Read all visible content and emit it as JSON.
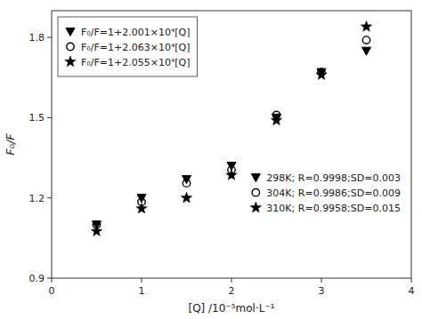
{
  "chart_data": {
    "type": "scatter",
    "x_label": "[Q] /10⁻⁵mol·L⁻¹",
    "y_label": "F₀/F",
    "x": [
      0.5,
      1.0,
      1.5,
      2.0,
      2.5,
      3.0,
      3.5
    ],
    "series": [
      {
        "name": "298K; R=0.9998;SD=0.003",
        "color": "#000000",
        "marker": "triangle-down",
        "values": [
          1.1,
          1.2,
          1.27,
          1.32,
          1.5,
          1.67,
          1.75
        ]
      },
      {
        "name": "304K; R=0.9986;SD=0.009",
        "color": "#000000",
        "marker": "circle-open",
        "values": [
          1.1,
          1.185,
          1.255,
          1.305,
          1.51,
          1.67,
          1.79
        ]
      },
      {
        "name": "310K; R=0.9958;SD=0.015",
        "color": "#000000",
        "marker": "star",
        "values": [
          1.075,
          1.16,
          1.2,
          1.285,
          1.49,
          1.66,
          1.84
        ]
      }
    ],
    "annotations": [
      "F₀/F=1+2.001×10⁴[Q]",
      "F₀/F=1+2.063×10⁴[Q]",
      "F₀/F=1+2.055×10⁴[Q]"
    ],
    "xlim": [
      0,
      4
    ],
    "ylim": [
      0.9,
      1.9
    ],
    "xticks": [
      0,
      1,
      2,
      3,
      4
    ],
    "yticks": [
      0.9,
      1.2,
      1.5,
      1.8
    ],
    "grid": false,
    "legend": "lower right"
  }
}
